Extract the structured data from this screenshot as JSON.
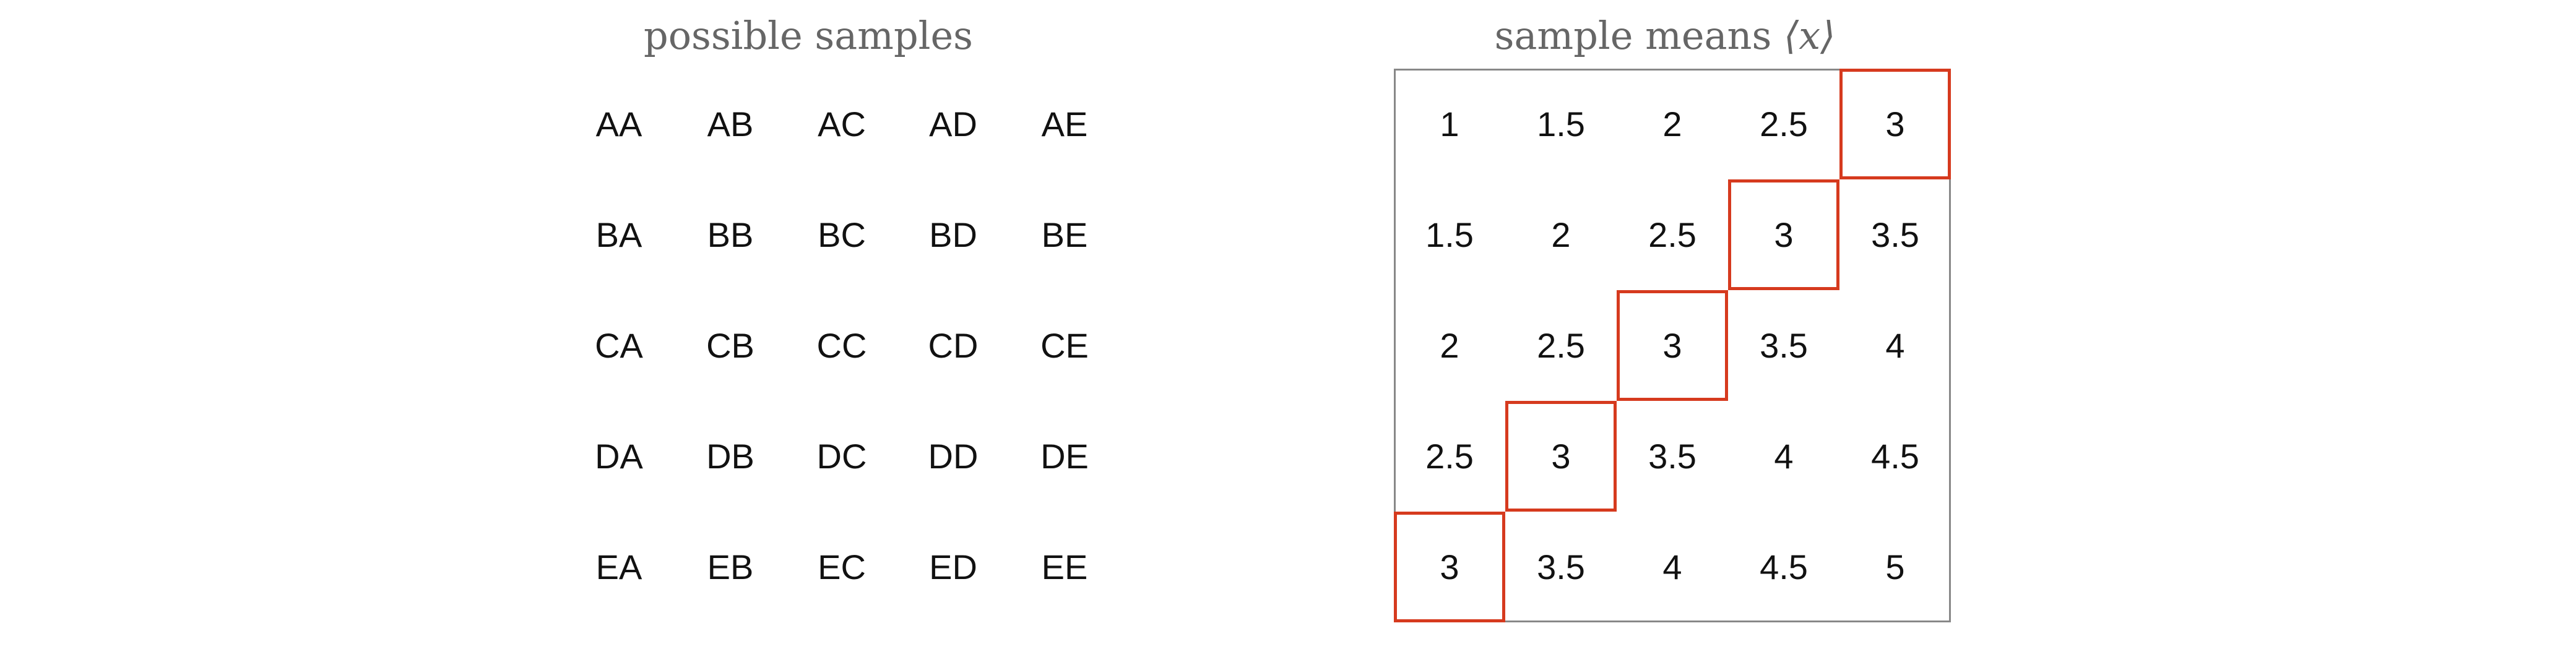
{
  "left_panel": {
    "title": "possible samples",
    "rows": [
      [
        "AA",
        "AB",
        "AC",
        "AD",
        "AE"
      ],
      [
        "BA",
        "BB",
        "BC",
        "BD",
        "BE"
      ],
      [
        "CA",
        "CB",
        "CC",
        "CD",
        "CE"
      ],
      [
        "DA",
        "DB",
        "DC",
        "DD",
        "DE"
      ],
      [
        "EA",
        "EB",
        "EC",
        "ED",
        "EE"
      ]
    ]
  },
  "right_panel": {
    "title_text": "sample means ",
    "title_symbol": "⟨x⟩",
    "rows": [
      [
        "1",
        "1.5",
        "2",
        "2.5",
        "3"
      ],
      [
        "1.5",
        "2",
        "2.5",
        "3",
        "3.5"
      ],
      [
        "2",
        "2.5",
        "3",
        "3.5",
        "4"
      ],
      [
        "2.5",
        "3",
        "3.5",
        "4",
        "4.5"
      ],
      [
        "3",
        "3.5",
        "4",
        "4.5",
        "5"
      ]
    ],
    "highlight_value": "3",
    "highlight_color": "#d63a1e",
    "frame_color": "#888888"
  }
}
